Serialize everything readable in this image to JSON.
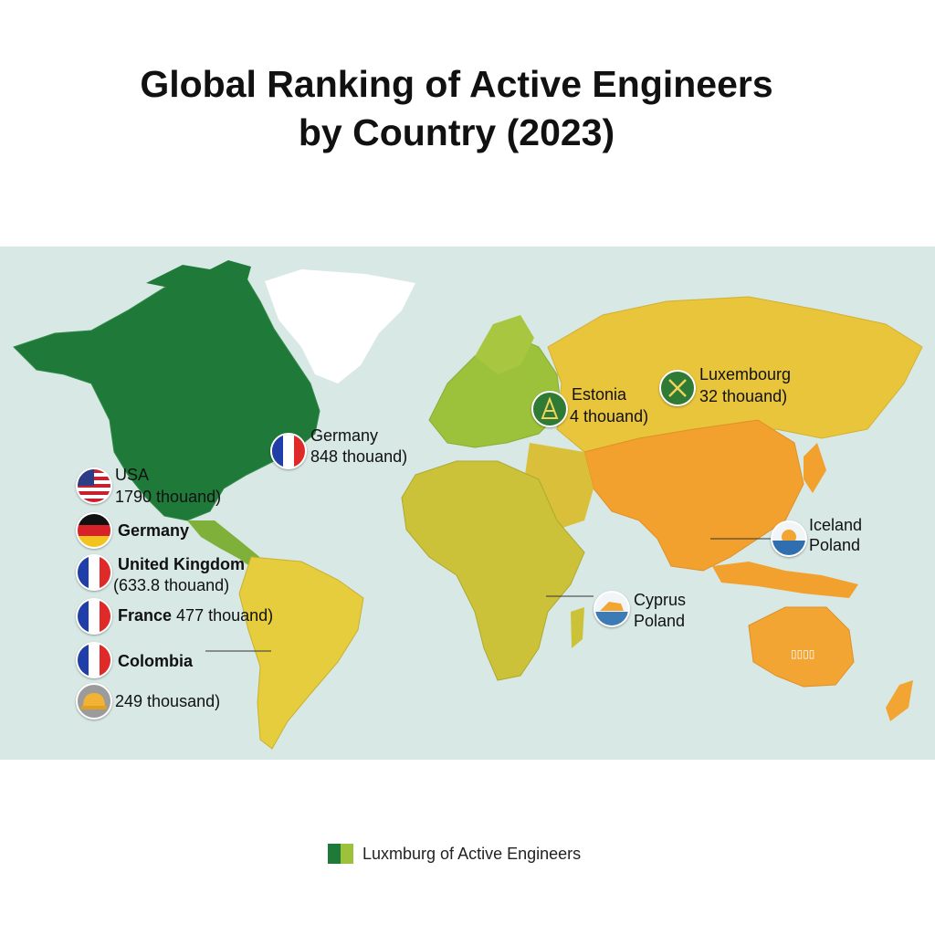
{
  "title": {
    "line1": "Global Ranking of Active Engineers",
    "line2": "by Country (2023)"
  },
  "colors": {
    "ocean": "#d7e8e5",
    "north_america": "#1f7a3a",
    "greenland": "#ffffff",
    "europe": "#9cc23c",
    "asia_north": "#e8c53a",
    "asia_south": "#f2a12f",
    "africa": "#cbc23a",
    "south_america": "#e6cd3e",
    "oceania": "#f2a533",
    "legend_dark": "#1f7a3a",
    "legend_light": "#9cc23c"
  },
  "map_labels": {
    "germany_atlantic": {
      "name": "Germany",
      "value": "848 thouand)",
      "icon": "france-flag-icon"
    },
    "estonia": {
      "name": "Estonia",
      "value": "4 thouand)",
      "icon": "tower-icon"
    },
    "luxembourg": {
      "name": "Luxembourg",
      "value": "32 thouand)",
      "icon": "crossed-tools-icon"
    },
    "iceland_poland": {
      "name": "Iceland",
      "value": "Poland",
      "icon": "sun-sea-icon"
    },
    "cyprus_poland": {
      "name": "Cyprus",
      "value": "Poland",
      "icon": "island-icon"
    },
    "australia_tag": "▯▯▯▯"
  },
  "ranking": [
    {
      "name": "USA",
      "value": "1790 thouand)",
      "icon": "usa-flag-icon"
    },
    {
      "name": "Germany",
      "value": "",
      "icon": "germany-flag-icon"
    },
    {
      "name": "United Kingdom",
      "value": "(633.8 thouand)",
      "icon": "france-flag-icon"
    },
    {
      "name": "France",
      "value": "477 thouand)",
      "icon": "france-flag-icon"
    },
    {
      "name": "Colombia",
      "value": "",
      "icon": "france-flag-icon"
    },
    {
      "name": "",
      "value": "249 thousand)",
      "icon": "hard-hat-icon"
    }
  ],
  "legend": {
    "label": "Luxmburg of Active Engineers"
  }
}
